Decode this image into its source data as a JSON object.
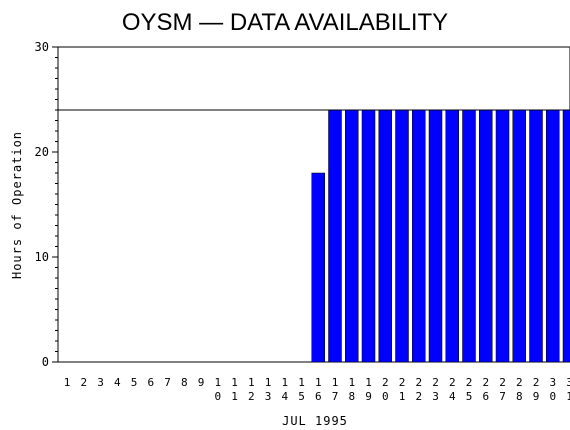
{
  "chart_data": {
    "type": "bar",
    "title": "OYSM — DATA AVAILABILITY",
    "xlabel": "JUL 1995",
    "ylabel": "Hours of Operation",
    "ylim": [
      0,
      30
    ],
    "yticks": [
      "0",
      "10",
      "20",
      "30"
    ],
    "reference_line": 24,
    "bar_color": "#0000ff",
    "categories": [
      "1",
      "2",
      "3",
      "4",
      "5",
      "6",
      "7",
      "8",
      "9",
      "10",
      "11",
      "12",
      "13",
      "14",
      "15",
      "16",
      "17",
      "18",
      "19",
      "20",
      "21",
      "22",
      "23",
      "24",
      "25",
      "26",
      "27",
      "28",
      "29",
      "30",
      "31"
    ],
    "values": [
      0,
      0,
      0,
      0,
      0,
      0,
      0,
      0,
      0,
      0,
      0,
      0,
      0,
      0,
      0,
      18,
      24,
      24,
      24,
      24,
      24,
      24,
      24,
      24,
      24,
      24,
      24,
      24,
      24,
      24,
      24
    ]
  }
}
